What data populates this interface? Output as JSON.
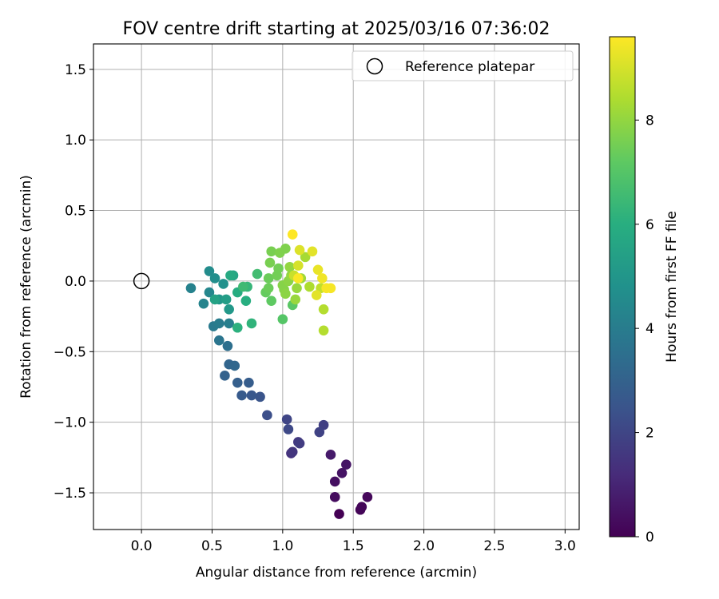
{
  "chart_data": {
    "type": "scatter",
    "title": "FOV centre drift starting at 2025/03/16 07:36:02",
    "xlabel": "Angular distance from reference (arcmin)",
    "ylabel": "Rotation from reference (arcmin)",
    "xlim": [
      -0.34,
      3.1
    ],
    "ylim": [
      -1.76,
      1.68
    ],
    "xticks": [
      0.0,
      0.5,
      1.0,
      1.5,
      2.0,
      2.5,
      3.0
    ],
    "xtick_labels": [
      "0.0",
      "0.5",
      "1.0",
      "1.5",
      "2.0",
      "2.5",
      "3.0"
    ],
    "yticks": [
      -1.5,
      -1.0,
      -0.5,
      0.0,
      0.5,
      1.0,
      1.5
    ],
    "ytick_labels": [
      "−1.5",
      "−1.0",
      "−0.5",
      "0.0",
      "0.5",
      "1.0",
      "1.5"
    ],
    "grid": true,
    "legend": {
      "position": "top-right",
      "entries": [
        "Reference platepar"
      ]
    },
    "reference_point": {
      "x": 0.0,
      "y": 0.0,
      "label": "Reference platepar"
    },
    "colorbar": {
      "label": "Hours from first FF file",
      "colormap": "viridis",
      "range": [
        0,
        9.6
      ],
      "ticks": [
        0,
        2,
        4,
        6,
        8
      ],
      "tick_labels": [
        "0",
        "2",
        "4",
        "6",
        "8"
      ]
    },
    "points": [
      {
        "x": 1.4,
        "y": -1.65,
        "c": 0.0
      },
      {
        "x": 1.55,
        "y": -1.62,
        "c": 0.1
      },
      {
        "x": 1.56,
        "y": -1.6,
        "c": 0.15
      },
      {
        "x": 1.6,
        "y": -1.53,
        "c": 0.2
      },
      {
        "x": 1.37,
        "y": -1.53,
        "c": 0.3
      },
      {
        "x": 1.37,
        "y": -1.42,
        "c": 0.4
      },
      {
        "x": 1.42,
        "y": -1.36,
        "c": 0.5
      },
      {
        "x": 1.45,
        "y": -1.3,
        "c": 0.55
      },
      {
        "x": 1.34,
        "y": -1.23,
        "c": 0.7
      },
      {
        "x": 1.06,
        "y": -1.22,
        "c": 1.4
      },
      {
        "x": 1.07,
        "y": -1.21,
        "c": 1.5
      },
      {
        "x": 1.11,
        "y": -1.14,
        "c": 1.6
      },
      {
        "x": 1.12,
        "y": -1.15,
        "c": 1.7
      },
      {
        "x": 1.29,
        "y": -1.02,
        "c": 1.8
      },
      {
        "x": 1.26,
        "y": -1.07,
        "c": 1.9
      },
      {
        "x": 1.03,
        "y": -0.98,
        "c": 2.0
      },
      {
        "x": 1.04,
        "y": -1.05,
        "c": 2.1
      },
      {
        "x": 0.89,
        "y": -0.95,
        "c": 2.3
      },
      {
        "x": 0.84,
        "y": -0.82,
        "c": 2.5
      },
      {
        "x": 0.78,
        "y": -0.81,
        "c": 2.6
      },
      {
        "x": 0.71,
        "y": -0.81,
        "c": 2.7
      },
      {
        "x": 0.76,
        "y": -0.72,
        "c": 2.8
      },
      {
        "x": 0.68,
        "y": -0.72,
        "c": 2.9
      },
      {
        "x": 0.59,
        "y": -0.67,
        "c": 3.0
      },
      {
        "x": 0.62,
        "y": -0.59,
        "c": 3.1
      },
      {
        "x": 0.66,
        "y": -0.6,
        "c": 3.2
      },
      {
        "x": 0.61,
        "y": -0.46,
        "c": 3.5
      },
      {
        "x": 0.55,
        "y": -0.42,
        "c": 3.7
      },
      {
        "x": 0.51,
        "y": -0.32,
        "c": 3.9
      },
      {
        "x": 0.55,
        "y": -0.3,
        "c": 4.0
      },
      {
        "x": 0.62,
        "y": -0.3,
        "c": 4.1
      },
      {
        "x": 0.35,
        "y": -0.05,
        "c": 4.2
      },
      {
        "x": 0.44,
        "y": -0.16,
        "c": 4.3
      },
      {
        "x": 0.48,
        "y": -0.08,
        "c": 4.4
      },
      {
        "x": 0.48,
        "y": 0.07,
        "c": 4.6
      },
      {
        "x": 0.52,
        "y": 0.02,
        "c": 4.7
      },
      {
        "x": 0.58,
        "y": -0.02,
        "c": 4.8
      },
      {
        "x": 0.55,
        "y": -0.13,
        "c": 5.0
      },
      {
        "x": 0.62,
        "y": -0.2,
        "c": 5.1
      },
      {
        "x": 0.6,
        "y": -0.13,
        "c": 5.3
      },
      {
        "x": 0.52,
        "y": -0.13,
        "c": 5.5
      },
      {
        "x": 0.65,
        "y": 0.04,
        "c": 5.6
      },
      {
        "x": 0.63,
        "y": 0.04,
        "c": 5.8
      },
      {
        "x": 0.68,
        "y": -0.08,
        "c": 5.9
      },
      {
        "x": 0.74,
        "y": -0.14,
        "c": 6.0
      },
      {
        "x": 0.68,
        "y": -0.33,
        "c": 6.1
      },
      {
        "x": 0.78,
        "y": -0.3,
        "c": 6.2
      },
      {
        "x": 0.75,
        "y": -0.04,
        "c": 6.3
      },
      {
        "x": 0.72,
        "y": -0.04,
        "c": 6.5
      },
      {
        "x": 0.82,
        "y": 0.05,
        "c": 6.6
      },
      {
        "x": 1.0,
        "y": -0.27,
        "c": 7.0
      },
      {
        "x": 1.07,
        "y": -0.17,
        "c": 7.1
      },
      {
        "x": 0.92,
        "y": -0.14,
        "c": 7.2
      },
      {
        "x": 0.88,
        "y": -0.08,
        "c": 7.3
      },
      {
        "x": 0.9,
        "y": -0.05,
        "c": 7.4
      },
      {
        "x": 0.9,
        "y": 0.02,
        "c": 7.4
      },
      {
        "x": 0.96,
        "y": 0.04,
        "c": 7.5
      },
      {
        "x": 0.97,
        "y": 0.09,
        "c": 7.5
      },
      {
        "x": 0.91,
        "y": 0.13,
        "c": 7.6
      },
      {
        "x": 0.92,
        "y": 0.21,
        "c": 7.6
      },
      {
        "x": 0.98,
        "y": 0.2,
        "c": 7.7
      },
      {
        "x": 1.02,
        "y": 0.23,
        "c": 7.7
      },
      {
        "x": 1.0,
        "y": -0.03,
        "c": 7.8
      },
      {
        "x": 1.01,
        "y": -0.06,
        "c": 7.8
      },
      {
        "x": 1.02,
        "y": -0.09,
        "c": 7.9
      },
      {
        "x": 1.04,
        "y": 0.0,
        "c": 7.9
      },
      {
        "x": 1.05,
        "y": 0.1,
        "c": 8.0
      },
      {
        "x": 1.06,
        "y": 0.04,
        "c": 8.0
      },
      {
        "x": 1.09,
        "y": -0.13,
        "c": 8.1
      },
      {
        "x": 1.1,
        "y": -0.05,
        "c": 8.1
      },
      {
        "x": 1.13,
        "y": 0.02,
        "c": 8.2
      },
      {
        "x": 1.16,
        "y": 0.17,
        "c": 8.3
      },
      {
        "x": 1.19,
        "y": -0.04,
        "c": 8.4
      },
      {
        "x": 1.29,
        "y": -0.2,
        "c": 8.5
      },
      {
        "x": 1.29,
        "y": -0.35,
        "c": 8.5
      },
      {
        "x": 1.27,
        "y": -0.05,
        "c": 8.7
      },
      {
        "x": 1.08,
        "y": 0.04,
        "c": 8.8
      },
      {
        "x": 1.11,
        "y": 0.11,
        "c": 9.0
      },
      {
        "x": 1.12,
        "y": 0.22,
        "c": 9.1
      },
      {
        "x": 1.21,
        "y": 0.21,
        "c": 9.2
      },
      {
        "x": 1.24,
        "y": -0.1,
        "c": 9.2
      },
      {
        "x": 1.25,
        "y": 0.08,
        "c": 9.3
      },
      {
        "x": 1.28,
        "y": 0.02,
        "c": 9.4
      },
      {
        "x": 1.31,
        "y": -0.05,
        "c": 9.5
      },
      {
        "x": 1.34,
        "y": -0.05,
        "c": 9.5
      },
      {
        "x": 1.11,
        "y": 0.02,
        "c": 9.55
      },
      {
        "x": 1.07,
        "y": 0.33,
        "c": 9.6
      }
    ]
  }
}
